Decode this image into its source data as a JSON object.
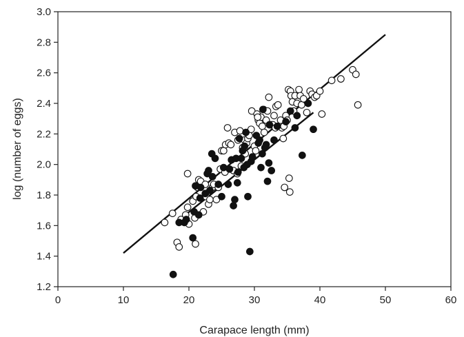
{
  "chart_data": {
    "type": "scatter",
    "xlabel": "Carapace length (mm)",
    "ylabel": "log (number of eggs)",
    "xlim": [
      0,
      60
    ],
    "ylim": [
      1.2,
      3.0
    ],
    "xticks": [
      "0",
      "10",
      "20",
      "30",
      "40",
      "50",
      "60"
    ],
    "yticks": [
      "1.2",
      "1.4",
      "1.6",
      "1.8",
      "2.0",
      "2.2",
      "2.4",
      "2.6",
      "2.8",
      "3.0"
    ],
    "grid": false,
    "series": [
      {
        "marker": "open-circle",
        "points": [
          [
            16.3,
            1.62
          ],
          [
            17.5,
            1.68
          ],
          [
            18.2,
            1.49
          ],
          [
            18.5,
            1.46
          ],
          [
            18.8,
            1.64
          ],
          [
            19.5,
            1.67
          ],
          [
            19.8,
            1.72
          ],
          [
            19.8,
            1.94
          ],
          [
            20.0,
            1.61
          ],
          [
            20.6,
            1.76
          ],
          [
            21.0,
            1.48
          ],
          [
            21.1,
            1.79
          ],
          [
            21.3,
            1.85
          ],
          [
            21.5,
            1.9
          ],
          [
            21.8,
            1.89
          ],
          [
            22.2,
            1.69
          ],
          [
            22.6,
            1.79
          ],
          [
            23.0,
            1.74
          ],
          [
            23.2,
            1.77
          ],
          [
            23.6,
            1.85
          ],
          [
            23.8,
            1.87
          ],
          [
            24.2,
            1.77
          ],
          [
            24.5,
            1.85
          ],
          [
            24.8,
            1.97
          ],
          [
            25.0,
            2.09
          ],
          [
            25.3,
            2.09
          ],
          [
            25.5,
            1.95
          ],
          [
            25.6,
            2.13
          ],
          [
            25.9,
            2.24
          ],
          [
            26.1,
            2.14
          ],
          [
            26.4,
            2.13
          ],
          [
            26.5,
            2.03
          ],
          [
            26.8,
            1.96
          ],
          [
            27.0,
            2.21
          ],
          [
            27.4,
            1.94
          ],
          [
            27.8,
            2.22
          ],
          [
            28.0,
            1.99
          ],
          [
            28.2,
            2.11
          ],
          [
            28.5,
            2.16
          ],
          [
            28.8,
            2.14
          ],
          [
            29.0,
            2.17
          ],
          [
            29.2,
            2.19
          ],
          [
            29.5,
            2.23
          ],
          [
            29.6,
            2.35
          ],
          [
            30.0,
            2.12
          ],
          [
            30.2,
            2.09
          ],
          [
            30.4,
            2.33
          ],
          [
            30.6,
            2.29
          ],
          [
            30.8,
            2.27
          ],
          [
            31.0,
            2.31
          ],
          [
            31.2,
            2.25
          ],
          [
            31.4,
            2.36
          ],
          [
            31.5,
            2.21
          ],
          [
            31.8,
            2.29
          ],
          [
            32.0,
            2.35
          ],
          [
            32.2,
            2.44
          ],
          [
            32.5,
            2.26
          ],
          [
            32.8,
            2.26
          ],
          [
            33.0,
            2.32
          ],
          [
            33.3,
            2.38
          ],
          [
            33.6,
            2.39
          ],
          [
            34.0,
            2.29
          ],
          [
            34.2,
            2.24
          ],
          [
            34.5,
            2.25
          ],
          [
            34.8,
            2.32
          ],
          [
            35.0,
            2.29
          ],
          [
            35.2,
            2.49
          ],
          [
            35.3,
            1.91
          ],
          [
            35.5,
            2.48
          ],
          [
            35.6,
            2.45
          ],
          [
            35.8,
            2.41
          ],
          [
            36.0,
            2.35
          ],
          [
            36.2,
            2.45
          ],
          [
            36.5,
            2.4
          ],
          [
            36.8,
            2.49
          ],
          [
            37.0,
            2.45
          ],
          [
            37.2,
            2.39
          ],
          [
            37.5,
            2.43
          ],
          [
            38.0,
            2.34
          ],
          [
            38.5,
            2.48
          ],
          [
            38.8,
            2.46
          ],
          [
            39.2,
            2.44
          ],
          [
            39.5,
            2.45
          ],
          [
            40.0,
            2.48
          ],
          [
            40.3,
            2.33
          ],
          [
            41.8,
            2.55
          ],
          [
            43.2,
            2.56
          ],
          [
            45.0,
            2.62
          ],
          [
            45.5,
            2.59
          ],
          [
            45.8,
            2.39
          ],
          [
            34.6,
            1.85
          ],
          [
            35.4,
            1.82
          ],
          [
            34.4,
            2.17
          ],
          [
            33.2,
            2.24
          ],
          [
            30.5,
            2.31
          ],
          [
            27.5,
            2.16
          ],
          [
            28.6,
            2.07
          ],
          [
            22.5,
            1.87
          ],
          [
            20.9,
            1.65
          ]
        ]
      },
      {
        "marker": "filled-circle",
        "points": [
          [
            17.6,
            1.28
          ],
          [
            18.5,
            1.62
          ],
          [
            19.3,
            1.62
          ],
          [
            19.6,
            1.64
          ],
          [
            20.6,
            1.52
          ],
          [
            20.8,
            1.69
          ],
          [
            21.0,
            1.86
          ],
          [
            21.5,
            1.67
          ],
          [
            21.7,
            1.78
          ],
          [
            21.8,
            1.85
          ],
          [
            22.5,
            1.81
          ],
          [
            22.8,
            1.94
          ],
          [
            23.0,
            1.96
          ],
          [
            23.2,
            1.83
          ],
          [
            23.5,
            2.07
          ],
          [
            23.6,
            1.92
          ],
          [
            24.0,
            2.04
          ],
          [
            24.5,
            1.87
          ],
          [
            25.0,
            1.79
          ],
          [
            25.3,
            1.98
          ],
          [
            26.0,
            1.87
          ],
          [
            26.5,
            2.03
          ],
          [
            26.8,
            1.73
          ],
          [
            27.0,
            1.77
          ],
          [
            27.2,
            2.04
          ],
          [
            27.4,
            1.88
          ],
          [
            27.5,
            1.95
          ],
          [
            27.7,
            2.17
          ],
          [
            28.0,
            2.04
          ],
          [
            28.2,
            2.09
          ],
          [
            28.5,
            2.12
          ],
          [
            28.7,
            2.21
          ],
          [
            28.9,
            2.0
          ],
          [
            29.0,
            1.79
          ],
          [
            29.3,
            1.43
          ],
          [
            29.5,
            2.02
          ],
          [
            29.7,
            2.05
          ],
          [
            30.3,
            2.19
          ],
          [
            30.8,
            2.16
          ],
          [
            31.0,
            1.98
          ],
          [
            31.2,
            2.07
          ],
          [
            31.3,
            2.36
          ],
          [
            31.6,
            2.11
          ],
          [
            31.8,
            2.13
          ],
          [
            32.0,
            1.89
          ],
          [
            32.2,
            2.01
          ],
          [
            32.3,
            2.26
          ],
          [
            32.6,
            1.96
          ],
          [
            33.0,
            2.16
          ],
          [
            33.5,
            2.25
          ],
          [
            34.8,
            2.28
          ],
          [
            35.5,
            2.35
          ],
          [
            36.2,
            2.24
          ],
          [
            36.5,
            2.32
          ],
          [
            37.3,
            2.06
          ],
          [
            38.2,
            2.4
          ],
          [
            39.0,
            2.23
          ],
          [
            30.6,
            2.14
          ],
          [
            28.4,
            1.98
          ],
          [
            26.2,
            1.97
          ]
        ]
      }
    ],
    "lines": [
      {
        "x": [
          10,
          50
        ],
        "y": [
          1.42,
          2.85
        ]
      },
      {
        "x": [
          18.3,
          39.0
        ],
        "y": [
          1.63,
          2.34
        ]
      }
    ]
  }
}
